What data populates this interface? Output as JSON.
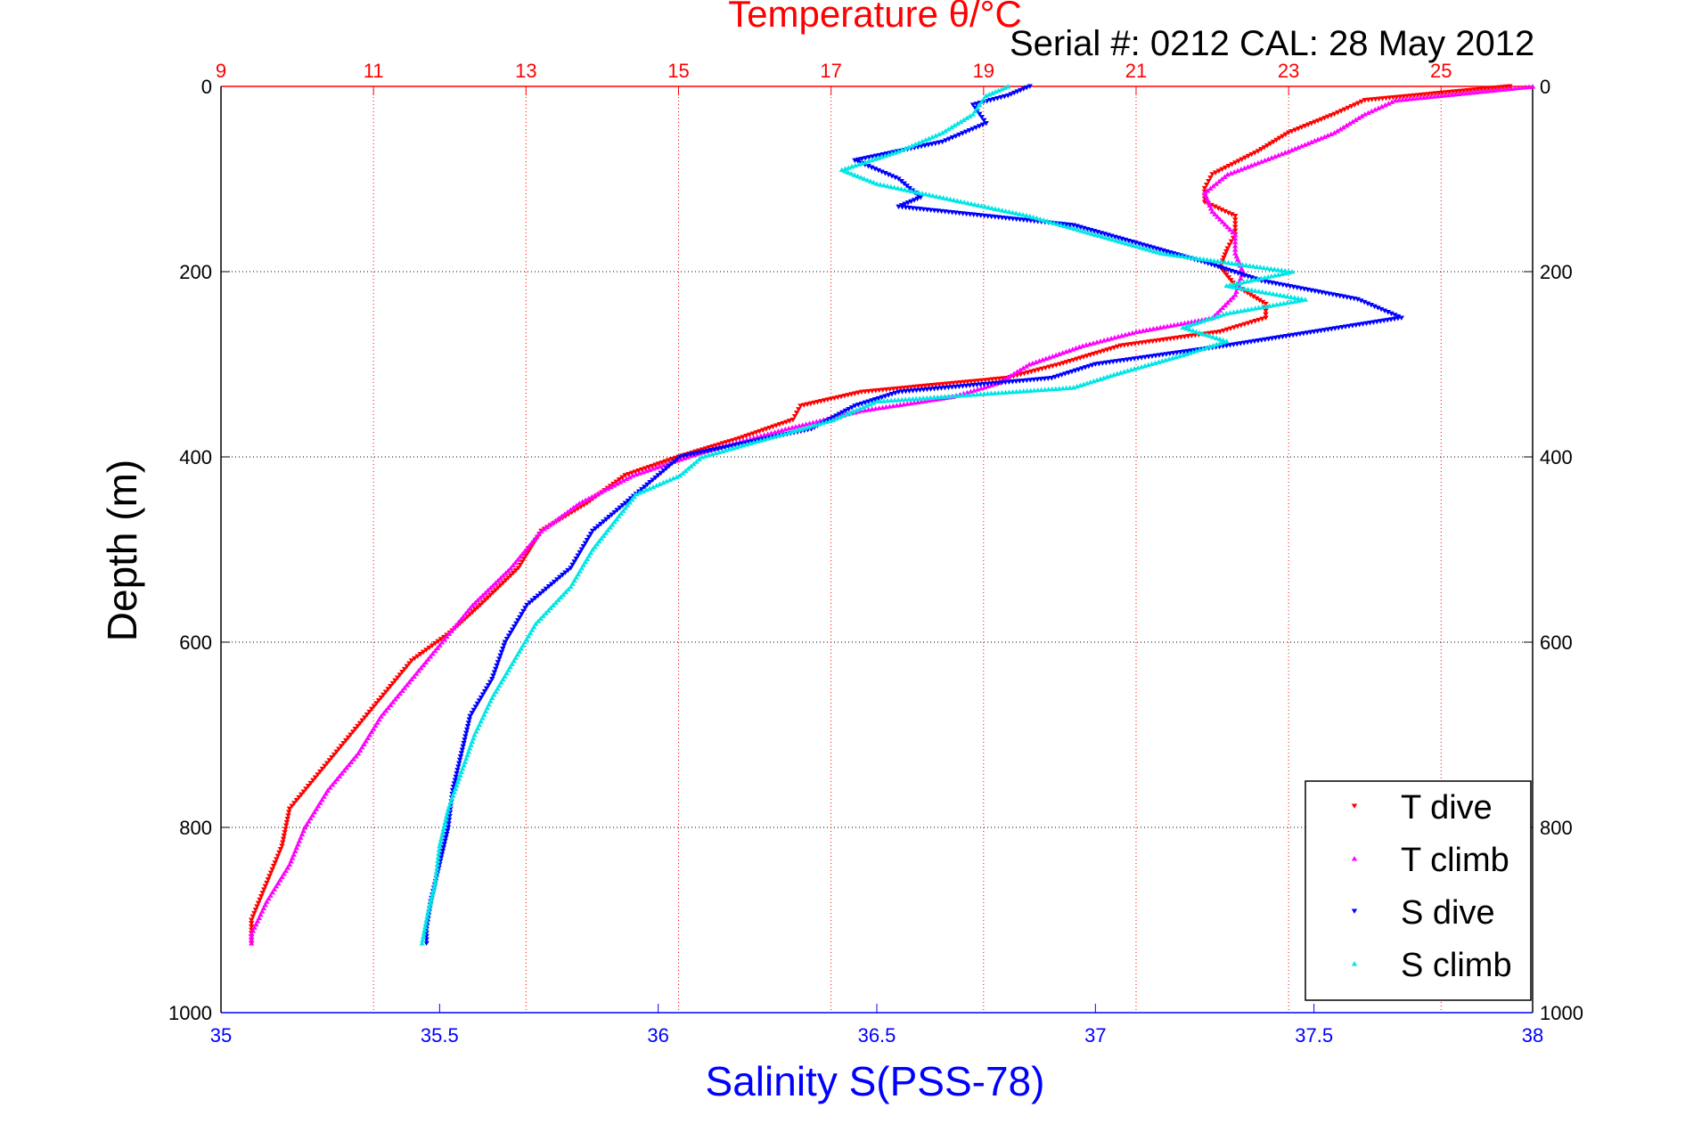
{
  "chart_data": {
    "type": "scatter",
    "title": "Temperature θ/°C",
    "annotation": "Serial #: 0212  CAL: 28 May 2012",
    "ylabel": "Depth (m)",
    "xlabel": "Salinity S(PSS-78)",
    "ylim": [
      0,
      1000
    ],
    "y_reversed": true,
    "y_ticks": [
      "0",
      "200",
      "400",
      "600",
      "800",
      "1000"
    ],
    "x_bottom": {
      "label": "Salinity S(PSS-78)",
      "lim": [
        35,
        38
      ],
      "ticks": [
        "35",
        "35.5",
        "36",
        "36.5",
        "37",
        "37.5",
        "38"
      ],
      "color": "#0000ff"
    },
    "x_top": {
      "label": "Temperature θ/°C",
      "lim": [
        9,
        26.2
      ],
      "ticks": [
        "9",
        "11",
        "13",
        "15",
        "17",
        "19",
        "21",
        "23",
        "25"
      ],
      "color": "#ff0000"
    },
    "grid": true,
    "legend_position": "bottom-right",
    "series": [
      {
        "name": "T dive",
        "axis": "temperature",
        "color": "#ff0000",
        "marker": "triangle-down",
        "depth": [
          0,
          15,
          30,
          50,
          70,
          95,
          110,
          125,
          140,
          160,
          175,
          195,
          215,
          235,
          250,
          265,
          280,
          300,
          315,
          330,
          345,
          360,
          380,
          400,
          420,
          450,
          480,
          520,
          560,
          590,
          620,
          660,
          700,
          740,
          780,
          820,
          860,
          900,
          925
        ],
        "values": [
          25.9,
          24.0,
          23.6,
          23.0,
          22.6,
          22.0,
          21.9,
          21.9,
          22.3,
          22.3,
          22.2,
          22.1,
          22.3,
          22.7,
          22.7,
          22.1,
          20.8,
          20.0,
          19.3,
          17.4,
          16.6,
          16.5,
          15.8,
          15.0,
          14.3,
          13.8,
          13.2,
          12.9,
          12.4,
          12.0,
          11.5,
          11.1,
          10.7,
          10.3,
          9.9,
          9.8,
          9.6,
          9.4,
          9.4
        ]
      },
      {
        "name": "T climb",
        "axis": "temperature",
        "color": "#ff00ff",
        "marker": "triangle-up",
        "depth": [
          0,
          15,
          30,
          50,
          70,
          95,
          115,
          135,
          160,
          180,
          200,
          225,
          250,
          265,
          280,
          300,
          320,
          335,
          350,
          370,
          395,
          420,
          450,
          480,
          520,
          560,
          600,
          640,
          680,
          720,
          760,
          800,
          840,
          880,
          915,
          925
        ],
        "values": [
          26.2,
          24.4,
          24.0,
          23.6,
          23.0,
          22.2,
          21.9,
          22.0,
          22.3,
          22.3,
          22.4,
          22.3,
          22.0,
          21.0,
          20.3,
          19.6,
          19.2,
          18.6,
          17.4,
          16.4,
          15.3,
          14.4,
          13.7,
          13.2,
          12.8,
          12.3,
          11.9,
          11.5,
          11.1,
          10.8,
          10.4,
          10.1,
          9.9,
          9.6,
          9.4,
          9.4
        ]
      },
      {
        "name": "S dive",
        "axis": "salinity",
        "color": "#0000ff",
        "marker": "triangle-down",
        "depth": [
          0,
          10,
          20,
          40,
          60,
          80,
          100,
          120,
          130,
          150,
          170,
          190,
          210,
          230,
          250,
          265,
          280,
          300,
          315,
          330,
          345,
          370,
          400,
          440,
          480,
          520,
          560,
          600,
          640,
          680,
          720,
          760,
          800,
          840,
          880,
          910,
          925
        ],
        "values": [
          36.85,
          36.8,
          36.72,
          36.75,
          36.65,
          36.45,
          36.55,
          36.6,
          36.55,
          36.95,
          37.1,
          37.25,
          37.38,
          37.6,
          37.7,
          37.5,
          37.3,
          37.0,
          36.9,
          36.55,
          36.45,
          36.35,
          36.05,
          35.95,
          35.85,
          35.8,
          35.7,
          35.65,
          35.62,
          35.57,
          35.55,
          35.53,
          35.52,
          35.5,
          35.48,
          35.47,
          35.47
        ]
      },
      {
        "name": "S climb",
        "axis": "salinity",
        "color": "#00e5e5",
        "marker": "triangle-up",
        "depth": [
          0,
          10,
          30,
          50,
          70,
          90,
          105,
          125,
          140,
          160,
          180,
          200,
          215,
          230,
          245,
          260,
          275,
          290,
          310,
          325,
          340,
          360,
          380,
          400,
          420,
          440,
          470,
          500,
          540,
          580,
          620,
          660,
          700,
          740,
          780,
          820,
          860,
          900,
          925
        ],
        "values": [
          36.8,
          36.75,
          36.72,
          36.65,
          36.55,
          36.42,
          36.5,
          36.7,
          36.85,
          37.0,
          37.15,
          37.45,
          37.3,
          37.48,
          37.3,
          37.2,
          37.3,
          37.2,
          37.05,
          36.95,
          36.5,
          36.4,
          36.25,
          36.1,
          36.05,
          35.95,
          35.9,
          35.85,
          35.8,
          35.72,
          35.67,
          35.62,
          35.58,
          35.55,
          35.52,
          35.5,
          35.49,
          35.47,
          35.46
        ]
      }
    ]
  }
}
